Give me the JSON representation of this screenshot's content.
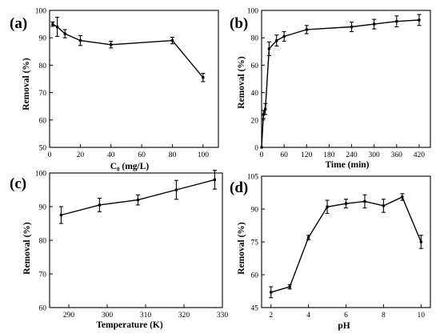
{
  "figure": {
    "background": "#ffffff",
    "line_color": "#000000"
  },
  "chart_data": [
    {
      "type": "line",
      "panel_label": "(a)",
      "xlabel": "C₀ (mg/L)",
      "ylabel": "Removal (%)",
      "xlim": [
        0,
        110
      ],
      "ylim": [
        50,
        100
      ],
      "xticks": [
        0,
        20,
        40,
        60,
        80,
        100
      ],
      "yticks": [
        50,
        60,
        70,
        80,
        90,
        100
      ],
      "x": [
        2,
        5,
        10,
        20,
        40,
        80,
        100
      ],
      "y": [
        95,
        94,
        91.5,
        89,
        87.5,
        89,
        75.5
      ],
      "error": [
        0.8,
        3.5,
        1.5,
        1.8,
        1.2,
        1.2,
        1.5
      ],
      "grid": false
    },
    {
      "type": "line",
      "panel_label": "(b)",
      "xlabel": "Time (min)",
      "ylabel": "Removal (%)",
      "xlim": [
        0,
        450
      ],
      "ylim": [
        0,
        100
      ],
      "xticks": [
        0,
        60,
        120,
        180,
        240,
        300,
        360,
        420
      ],
      "yticks": [
        0,
        20,
        40,
        60,
        80,
        100
      ],
      "x": [
        0,
        5,
        10,
        20,
        40,
        60,
        120,
        240,
        300,
        360,
        420
      ],
      "y": [
        0,
        24,
        28,
        72,
        78,
        81,
        86,
        88,
        90,
        92,
        93
      ],
      "error": [
        0,
        3,
        4,
        5,
        4,
        3.5,
        3,
        3.5,
        3.5,
        4,
        4
      ],
      "grid": false
    },
    {
      "type": "line",
      "panel_label": "(c)",
      "xlabel": "Temperature (K)",
      "ylabel": "Removal (%)",
      "xlim": [
        285,
        330
      ],
      "ylim": [
        60,
        100
      ],
      "xticks": [
        290,
        300,
        310,
        320,
        330
      ],
      "yticks": [
        60,
        70,
        80,
        90,
        100
      ],
      "x": [
        288,
        298,
        308,
        318,
        328
      ],
      "y": [
        87.5,
        90.5,
        92,
        95,
        98
      ],
      "error": [
        2.5,
        2,
        1.5,
        2.8,
        2.8
      ],
      "grid": false
    },
    {
      "type": "line",
      "panel_label": "(d)",
      "xlabel": "pH",
      "ylabel": "Removal (%)",
      "xlim": [
        1.5,
        10.5
      ],
      "ylim": [
        45,
        105
      ],
      "xticks": [
        2,
        4,
        6,
        8,
        10
      ],
      "yticks": [
        45,
        60,
        75,
        90,
        105
      ],
      "x": [
        2,
        3,
        4,
        5,
        6,
        7,
        8,
        9,
        10
      ],
      "y": [
        52,
        54.5,
        77,
        91,
        92.5,
        93.5,
        91.5,
        95.5,
        75
      ],
      "error": [
        2.5,
        1,
        1,
        3,
        2,
        3,
        3,
        1.5,
        3
      ],
      "grid": false
    }
  ]
}
